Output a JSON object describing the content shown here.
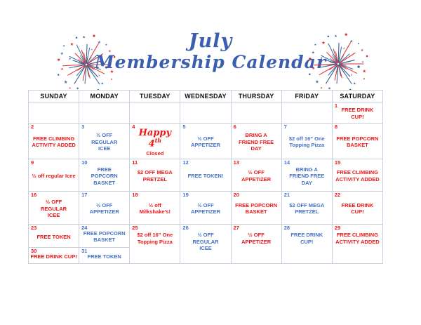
{
  "title": {
    "line1": "July",
    "line2": "Membership Calendar"
  },
  "icons": {
    "left_decoration": "fireworks-icon",
    "right_decoration": "fireworks-icon"
  },
  "colors": {
    "promo_red": "#ee1717",
    "promo_blue": "#4472c4",
    "title_blue": "#3b5fae",
    "grid_border": "#c7d1e2",
    "header_text": "#111111",
    "firework_red": "#dd3333",
    "firework_blue": "#3f6fa8",
    "firework_navy": "#2c5a8c"
  },
  "calendar": {
    "day_headers": [
      "SUNDAY",
      "MONDAY",
      "TUESDAY",
      "WEDNESDAY",
      "THURSDAY",
      "FRIDAY",
      "SATURDAY"
    ],
    "weeks": [
      [
        null,
        null,
        null,
        null,
        null,
        null,
        {
          "day": "1",
          "color": "red",
          "lines": [
            "FREE DRINK",
            "CUP!"
          ]
        }
      ],
      [
        {
          "day": "2",
          "color": "red",
          "lines": [
            "FREE CLIMBING",
            "ACTIVITY ADDED"
          ]
        },
        {
          "day": "3",
          "color": "blue",
          "lines": [
            "½ OFF",
            "REGULAR",
            "ICEE"
          ]
        },
        {
          "day": "4",
          "color": "red",
          "script_text": "Happy 4",
          "script_sup": "th",
          "lines": [
            "Closed"
          ]
        },
        {
          "day": "5",
          "color": "blue",
          "lines": [
            "½ OFF",
            "APPETIZER"
          ]
        },
        {
          "day": "6",
          "color": "red",
          "lines": [
            "BRING A",
            "FRIEND FREE",
            "DAY"
          ]
        },
        {
          "day": "7",
          "color": "blue",
          "lines": [
            "$2 off 16” One",
            "Topping Pizza"
          ]
        },
        {
          "day": "8",
          "color": "red",
          "lines": [
            "FREE POPCORN",
            "BASKET"
          ]
        }
      ],
      [
        {
          "day": "9",
          "color": "red",
          "lines": [
            "½ off regular Icee"
          ]
        },
        {
          "day": "10",
          "color": "blue",
          "lines": [
            "FREE",
            "POPCORN",
            "BASKET"
          ]
        },
        {
          "day": "11",
          "color": "red",
          "lines": [
            "$2 OFF MEGA",
            "PRETZEL"
          ]
        },
        {
          "day": "12",
          "color": "blue",
          "lines": [
            "FREE TOKEN!"
          ]
        },
        {
          "day": "13",
          "color": "red",
          "lines": [
            "½ OFF APPETIZER"
          ]
        },
        {
          "day": "14",
          "color": "blue",
          "lines": [
            "BRING A",
            "FRIEND FREE",
            "DAY"
          ]
        },
        {
          "day": "15",
          "color": "red",
          "lines": [
            "FREE CLIMBING",
            "ACTIVITY ADDED"
          ]
        }
      ],
      [
        {
          "day": "16",
          "color": "red",
          "lines": [
            "½ OFF",
            "REGULAR",
            "ICEE"
          ]
        },
        {
          "day": "17",
          "color": "blue",
          "lines": [
            "½ OFF",
            "APPETIZER"
          ]
        },
        {
          "day": "18",
          "color": "red",
          "lines": [
            "½ off",
            "Milkshake's!"
          ]
        },
        {
          "day": "19",
          "color": "blue",
          "lines": [
            "½ OFF",
            "APPETIZER"
          ]
        },
        {
          "day": "20",
          "color": "red",
          "lines": [
            "FREE POPCORN",
            "BASKET"
          ]
        },
        {
          "day": "21",
          "color": "blue",
          "lines": [
            "$2 OFF MEGA",
            "PRETZEL"
          ]
        },
        {
          "day": "22",
          "color": "red",
          "lines": [
            "FREE DRINK",
            "CUP!"
          ]
        }
      ],
      [
        {
          "day": "23",
          "color": "red",
          "lines": [
            "FREE TOKEN"
          ]
        },
        {
          "day": "24",
          "color": "blue",
          "lines": [
            "FREE POPCORN",
            "BASKET"
          ]
        },
        {
          "day": "25",
          "color": "red",
          "lines": [
            "$2 off 16” One",
            "Topping Pizza"
          ]
        },
        {
          "day": "26",
          "color": "blue",
          "lines": [
            "½ OFF",
            "REGULAR",
            "ICEE"
          ]
        },
        {
          "day": "27",
          "color": "red",
          "lines": [
            "½ OFF",
            "APPETIZER"
          ]
        },
        {
          "day": "28",
          "color": "blue",
          "lines": [
            "FREE DRINK",
            "CUP!"
          ]
        },
        {
          "day": "29",
          "color": "red",
          "lines": [
            "FREE CLIMBING",
            "ACTIVITY ADDED"
          ]
        }
      ],
      [
        {
          "day": "30",
          "color": "red",
          "lines": [
            "FREE DRINK CUP!"
          ]
        },
        {
          "day": "31",
          "color": "blue",
          "lines": [
            "FREE TOKEN"
          ]
        }
      ]
    ]
  }
}
